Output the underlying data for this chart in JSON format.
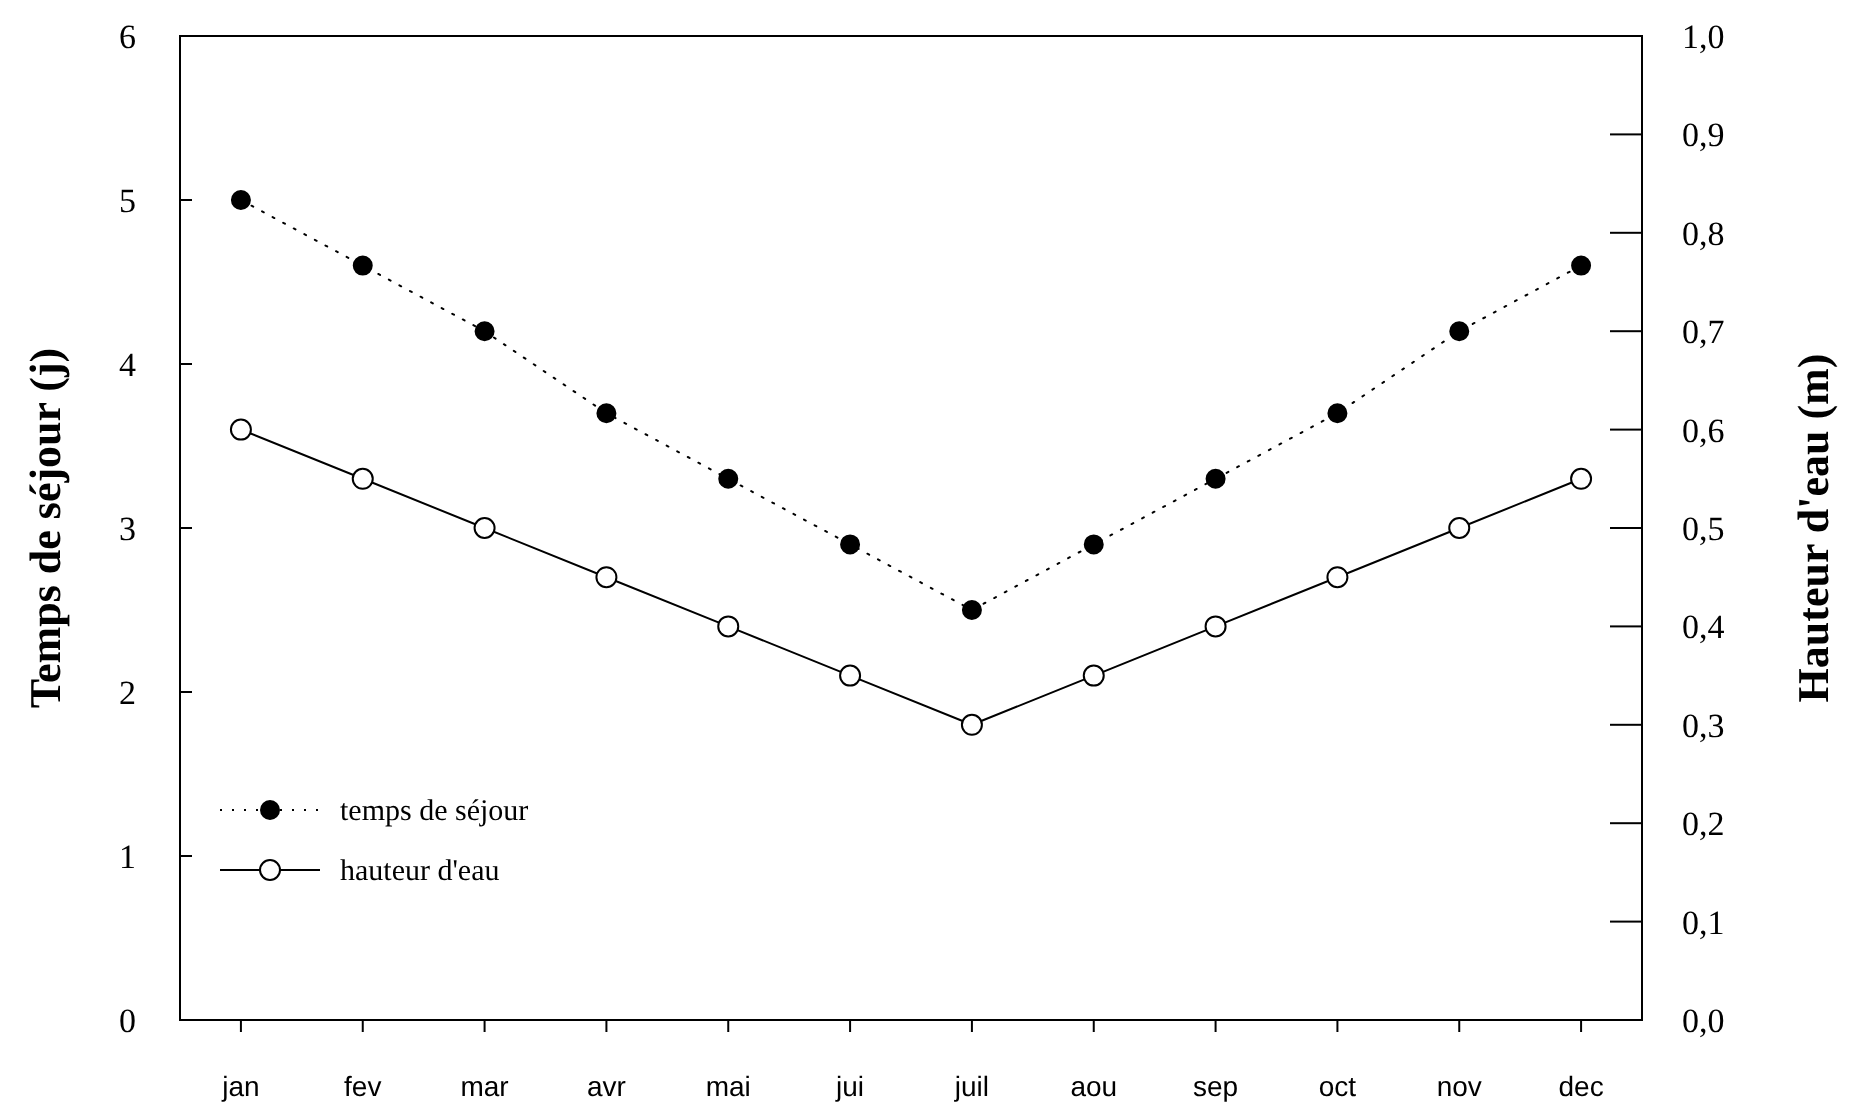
{
  "chart_data": {
    "type": "line",
    "ylabel": "Temps de séjour (j)",
    "y2label": "Hauteur d'eau (m)",
    "categories": [
      "jan",
      "fev",
      "mar",
      "avr",
      "mai",
      "jui",
      "juil",
      "aou",
      "sep",
      "oct",
      "nov",
      "dec"
    ],
    "series": [
      {
        "name": "temps de séjour",
        "color": "#000000",
        "marker": "circle",
        "line_style": "dotted",
        "values": [
          5,
          4.6,
          4.2,
          3.7,
          3.3,
          2.9,
          2.5,
          2.9,
          3.3,
          3.7,
          4.2,
          4.6
        ]
      },
      {
        "name": "hauteur d'eau",
        "color": "#000000",
        "marker": "circle",
        "line_style": "solid",
        "axis": "y2",
        "values": [
          0.6,
          0.55,
          0.5,
          0.45,
          0.4,
          0.35,
          0.3,
          0.35,
          0.4,
          0.45,
          0.5,
          0.55
        ]
      }
    ],
    "ylim": [
      0,
      6
    ],
    "yticks": [
      0,
      1,
      2,
      3,
      4,
      5,
      6
    ],
    "y2lim": [
      0,
      1
    ],
    "y2ticks": [
      {
        "value": 0,
        "label": "0,0"
      },
      {
        "value": 0.1,
        "label": "0,1"
      },
      {
        "value": 0.2,
        "label": "0,2"
      },
      {
        "value": 0.3,
        "label": "0,3"
      },
      {
        "value": 0.4,
        "label": "0,4"
      },
      {
        "value": 0.5,
        "label": "0,5"
      },
      {
        "value": 0.6,
        "label": "0,6"
      },
      {
        "value": 0.7,
        "label": "0,7"
      },
      {
        "value": 0.8,
        "label": "0,8"
      },
      {
        "value": 0.9,
        "label": "0,9"
      },
      {
        "value": 1,
        "label": "1,0"
      }
    ],
    "grid": false,
    "legend": "bottom left"
  }
}
